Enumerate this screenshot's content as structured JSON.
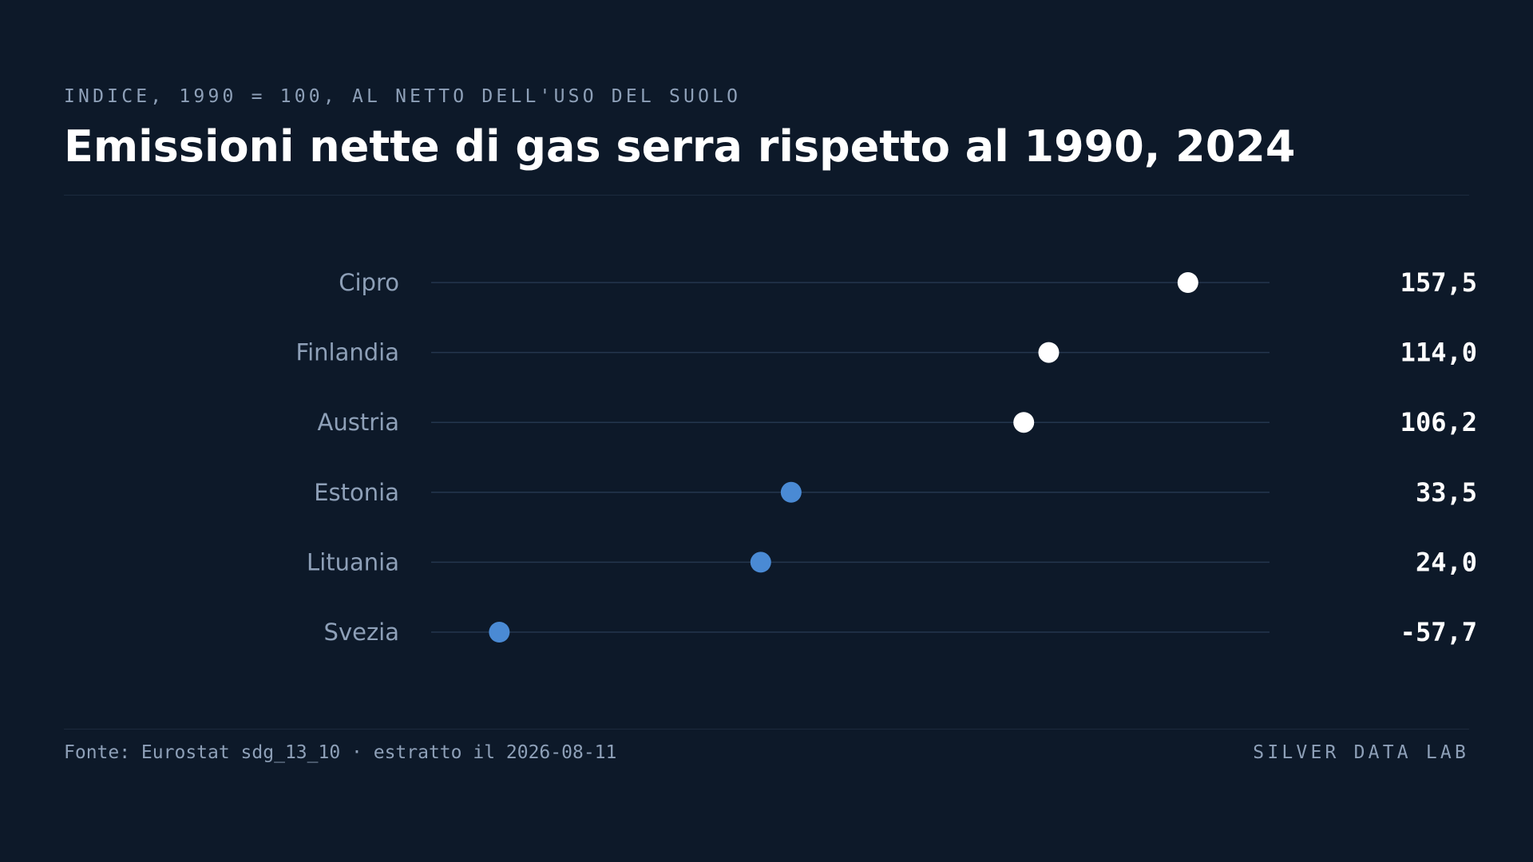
{
  "header": {
    "subtitle": "INDICE, 1990 = 100, AL NETTO DELL'USO DEL SUOLO",
    "title": "Emissioni nette di gas serra rispetto al 1990, 2024"
  },
  "footer": {
    "source": "Fonte: Eurostat sdg_13_10 · estratto il 2026-08-11",
    "brand": "SILVER DATA LAB"
  },
  "chart_data": {
    "type": "scatter",
    "style": "dot-plot",
    "title": "Emissioni nette di gas serra rispetto al 1990, 2024",
    "subtitle": "INDICE, 1990 = 100, AL NETTO DELL'USO DEL SUOLO",
    "categories": [
      "Cipro",
      "Finlandia",
      "Austria",
      "Estonia",
      "Lituania",
      "Svezia"
    ],
    "values": [
      157.5,
      114.0,
      106.2,
      33.5,
      24.0,
      -57.7
    ],
    "value_labels": [
      "157,5",
      "114,0",
      "106,2",
      "33,5",
      "24,0",
      "-57,7"
    ],
    "threshold": 100,
    "xlim": [
      -79,
      183
    ],
    "grid": false,
    "colors": {
      "above_threshold": "#ffffff",
      "below_threshold": "#4a8ad4",
      "track": "#24364e",
      "label": "#8ea0b8",
      "value": "#ffffff"
    }
  }
}
